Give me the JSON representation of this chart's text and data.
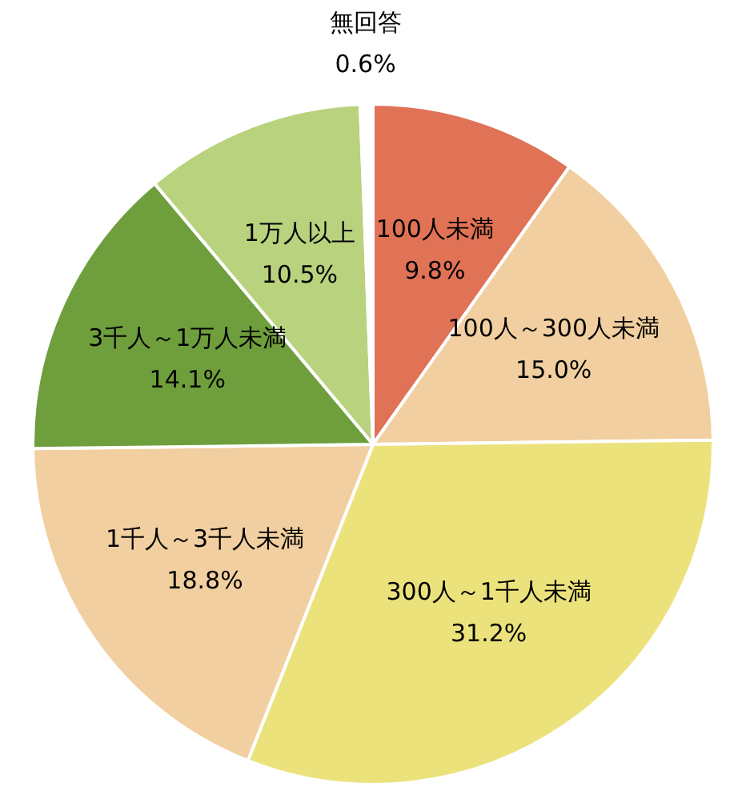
{
  "chart_data": {
    "type": "pie",
    "categories": [
      "100人未満",
      "100人～300人未満",
      "300人～1千人未満",
      "1千人～3千人未満",
      "3千人～1万人未満",
      "1万人以上",
      "無回答"
    ],
    "values": [
      9.8,
      15.0,
      31.2,
      18.8,
      14.1,
      10.5,
      0.6
    ],
    "value_labels": [
      "9.8%",
      "15.0%",
      "31.2%",
      "18.8%",
      "14.1%",
      "10.5%",
      "0.6%"
    ],
    "colors": [
      "#e07256",
      "#f2cfa0",
      "#ece27c",
      "#f2cfa0",
      "#6f9e3c",
      "#b9d27e",
      "#ffffff"
    ],
    "legend": false
  }
}
